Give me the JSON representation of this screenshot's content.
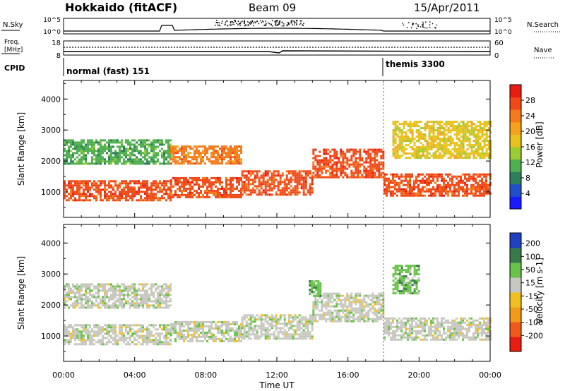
{
  "header": {
    "station": "Hokkaido (fitACF)",
    "beam": "Beam 09",
    "date": "15/Apr/2011"
  },
  "strips": {
    "nsky": {
      "label": "N.Sky",
      "top_tick": "10^5",
      "bottom_tick": "10^0"
    },
    "nsearch": {
      "label": "N.Search",
      "top_tick": "10^5",
      "bottom_tick": "10^0"
    },
    "freq": {
      "label_line1": "Freq.",
      "label_line2": "[MHz]",
      "top_tick": "18",
      "bottom_tick": "8"
    },
    "nave": {
      "label": "Nave",
      "top_tick": "60",
      "bottom_tick": "0"
    },
    "cpid": {
      "label": "CPID",
      "modes": [
        {
          "name": "normal (fast) 151",
          "start_hour": 0
        },
        {
          "name": "themis 3300",
          "start_hour": 18
        }
      ]
    }
  },
  "chart_data": [
    {
      "type": "heatmap",
      "name": "power",
      "ylabel": "Slant Range [km]",
      "xlabel": "Time UT",
      "xlim_hours": [
        0,
        24
      ],
      "ylim_km": [
        180,
        4600
      ],
      "yticks": [
        "1000",
        "2000",
        "3000",
        "4000"
      ],
      "xticks": [
        "00:00",
        "04:00",
        "08:00",
        "12:00",
        "16:00",
        "20:00",
        "00:00"
      ],
      "colorbar": {
        "label": "Power [dB]",
        "ticks": [
          "4",
          "8",
          "12",
          "16",
          "20",
          "24",
          "28"
        ],
        "colors": [
          "#1a1aff",
          "#1f4fc8",
          "#2e7d5b",
          "#4fb04f",
          "#9ccc33",
          "#e8c21c",
          "#f4a21e",
          "#f47a1b",
          "#f04a18",
          "#e81c10"
        ]
      },
      "echo_bands": [
        {
          "hours": [
            0,
            6
          ],
          "range_km": [
            760,
            1380
          ],
          "power_db": 28
        },
        {
          "hours": [
            6,
            10
          ],
          "range_km": [
            820,
            1480
          ],
          "power_db": 28
        },
        {
          "hours": [
            10,
            14
          ],
          "range_km": [
            900,
            1700
          ],
          "power_db": 26
        },
        {
          "hours": [
            14,
            18
          ],
          "range_km": [
            1500,
            2400
          ],
          "power_db": 27
        },
        {
          "hours": [
            18,
            24
          ],
          "range_km": [
            900,
            1600
          ],
          "power_db": 26
        },
        {
          "hours": [
            0,
            6
          ],
          "range_km": [
            1900,
            2700
          ],
          "power_db": 10
        },
        {
          "hours": [
            6,
            10
          ],
          "range_km": [
            1900,
            2500
          ],
          "power_db": 24
        },
        {
          "hours": [
            18.5,
            24
          ],
          "range_km": [
            2100,
            3300
          ],
          "power_db": 18
        }
      ]
    },
    {
      "type": "heatmap",
      "name": "velocity",
      "ylabel": "Slant Range [km]",
      "xlabel": "Time UT",
      "xlim_hours": [
        0,
        24
      ],
      "ylim_km": [
        180,
        4600
      ],
      "yticks": [
        "1000",
        "2000",
        "3000",
        "4000"
      ],
      "xticks": [
        "00:00",
        "04:00",
        "08:00",
        "12:00",
        "16:00",
        "20:00",
        "00:00"
      ],
      "colorbar": {
        "label": "Velocity [m s-1]",
        "ticks": [
          "200",
          "100",
          "50",
          "15",
          "-15",
          "-50",
          "-100",
          "-200"
        ],
        "colors": [
          "#2040c0",
          "#3a7a4a",
          "#6ac24a",
          "#c8c8c0",
          "#f0c020",
          "#f49a1a",
          "#f05a18",
          "#e81c10"
        ]
      },
      "echo_bands": [
        {
          "hours": [
            0,
            6
          ],
          "range_km": [
            760,
            1380
          ],
          "velocity_ms": 0
        },
        {
          "hours": [
            6,
            10
          ],
          "range_km": [
            820,
            1480
          ],
          "velocity_ms": 0
        },
        {
          "hours": [
            10,
            14
          ],
          "range_km": [
            900,
            1700
          ],
          "velocity_ms": 0
        },
        {
          "hours": [
            14,
            18
          ],
          "range_km": [
            1500,
            2400
          ],
          "velocity_ms": 0
        },
        {
          "hours": [
            18,
            24
          ],
          "range_km": [
            900,
            1600
          ],
          "velocity_ms": 0
        },
        {
          "hours": [
            0,
            6
          ],
          "range_km": [
            1900,
            2700
          ],
          "velocity_ms": 0
        },
        {
          "hours": [
            18.5,
            20
          ],
          "range_km": [
            2400,
            3300
          ],
          "velocity_ms": 60
        },
        {
          "hours": [
            13.8,
            14.5
          ],
          "range_km": [
            2300,
            2800
          ],
          "velocity_ms": 60
        }
      ]
    }
  ]
}
